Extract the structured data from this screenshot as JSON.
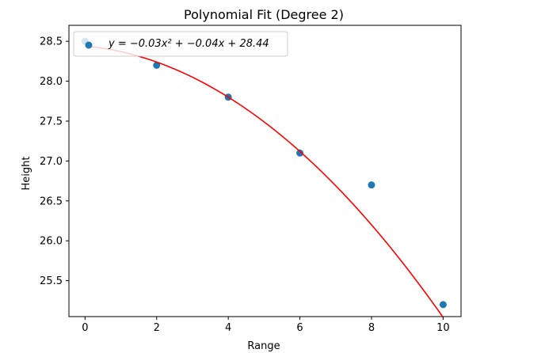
{
  "chart_data": {
    "type": "scatter",
    "title": "Polynomial Fit (Degree 2)",
    "xlabel": "Range",
    "ylabel": "Height",
    "xlim": [
      -0.45,
      10.5
    ],
    "ylim": [
      25.05,
      28.7
    ],
    "x_ticks": [
      0,
      2,
      4,
      6,
      8,
      10
    ],
    "x_tick_labels": [
      "0",
      "2",
      "4",
      "6",
      "8",
      "10"
    ],
    "y_ticks": [
      25.5,
      26.0,
      26.5,
      27.0,
      27.5,
      28.0,
      28.5
    ],
    "y_tick_labels": [
      "25.5",
      "26.0",
      "26.5",
      "27.0",
      "27.5",
      "28.0",
      "28.5"
    ],
    "grid": false,
    "legend_position": "upper-left",
    "series": [
      {
        "kind": "points",
        "color": "#1f77b4",
        "x": [
          0,
          2,
          4,
          6,
          8,
          10
        ],
        "y": [
          28.5,
          28.2,
          27.8,
          27.1,
          26.7,
          25.2
        ]
      },
      {
        "kind": "fit-curve",
        "name": "y = −0.03x² + −0.04x + 28.44",
        "color": "#ff0000",
        "coefficients": [
          -0.03,
          -0.04,
          28.44
        ],
        "x_range": [
          0,
          10
        ]
      }
    ]
  }
}
